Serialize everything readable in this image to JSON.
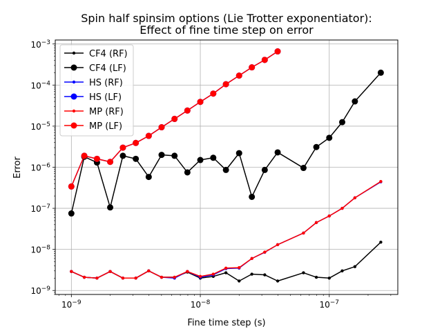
{
  "chart_data": {
    "type": "line",
    "title": [
      "Spin half spinsim options (Lie Trotter exponentiator):",
      "Effect of fine time step on error"
    ],
    "xlabel": "Fine time step (s)",
    "ylabel": "Error",
    "xscale": "log",
    "yscale": "log",
    "xlim": [
      7.5e-10,
      3.4e-07
    ],
    "ylim": [
      8e-10,
      0.00125
    ],
    "x_ticks": [
      {
        "value": 1e-09,
        "base": "10",
        "exp": "−9"
      },
      {
        "value": 1e-08,
        "base": "10",
        "exp": "−8"
      },
      {
        "value": 1e-07,
        "base": "10",
        "exp": "−7"
      }
    ],
    "y_ticks": [
      {
        "value": 1e-09,
        "base": "10",
        "exp": "−9"
      },
      {
        "value": 1e-08,
        "base": "10",
        "exp": "−8"
      },
      {
        "value": 1e-07,
        "base": "10",
        "exp": "−7"
      },
      {
        "value": 1e-06,
        "base": "10",
        "exp": "−6"
      },
      {
        "value": 1e-05,
        "base": "10",
        "exp": "−5"
      },
      {
        "value": 0.0001,
        "base": "10",
        "exp": "−4"
      },
      {
        "value": 0.001,
        "base": "10",
        "exp": "−3"
      }
    ],
    "grid": true,
    "legend_position": "top-left",
    "x": [
      1e-09,
      1.26e-09,
      1.58e-09,
      2e-09,
      2.51e-09,
      3.16e-09,
      3.98e-09,
      5.01e-09,
      6.31e-09,
      7.94e-09,
      1e-08,
      1.26e-08,
      1.58e-08,
      2e-08,
      2.51e-08,
      3.16e-08,
      3.98e-08,
      5.01e-08,
      6.31e-08,
      7.94e-08,
      1e-07,
      1.26e-07,
      1.58e-07,
      2e-07,
      2.51e-07
    ],
    "series": [
      {
        "name": "CF4 (RF)",
        "color": "#000000",
        "marker": "small",
        "values": [
          2.9e-09,
          2.1e-09,
          2e-09,
          2.9e-09,
          2e-09,
          2e-09,
          3e-09,
          2.1e-09,
          2.1e-09,
          2.8e-09,
          2e-09,
          2.2e-09,
          2.7e-09,
          1.7e-09,
          2.5e-09,
          2.4e-09,
          1.7e-09,
          null,
          2.7e-09,
          2.1e-09,
          2e-09,
          3e-09,
          3.8e-09,
          null,
          1.5e-08
        ]
      },
      {
        "name": "CF4 (LF)",
        "color": "#000000",
        "marker": "large",
        "values": [
          7.5e-08,
          1.8e-06,
          1.3e-06,
          1.05e-07,
          1.9e-06,
          1.6e-06,
          5.8e-07,
          2e-06,
          1.9e-06,
          7.5e-07,
          1.5e-06,
          1.7e-06,
          8.6e-07,
          2.2e-06,
          1.9e-07,
          8.6e-07,
          2.3e-06,
          null,
          9.6e-07,
          3.1e-06,
          5.2e-06,
          1.25e-05,
          4e-05,
          null,
          0.0002
        ]
      },
      {
        "name": "HS (RF)",
        "color": "#0000ff",
        "marker": "small",
        "values": [
          2.9e-09,
          2.1e-09,
          2e-09,
          2.9e-09,
          2e-09,
          2e-09,
          3e-09,
          2.1e-09,
          2e-09,
          2.9e-09,
          2.1e-09,
          2.4e-09,
          3.4e-09,
          3.5e-09,
          6e-09,
          8.5e-09,
          1.3e-08,
          null,
          2.5e-08,
          4.5e-08,
          6.5e-08,
          1e-07,
          1.8e-07,
          null,
          4.4e-07
        ]
      },
      {
        "name": "HS (LF)",
        "color": "#0000ff",
        "marker": "large",
        "values": [
          3.4e-07,
          1.9e-06,
          1.6e-06,
          1.35e-06,
          3e-06,
          3.9e-06,
          5.8e-06,
          9.4e-06,
          1.5e-05,
          2.4e-05,
          3.9e-05,
          6.2e-05,
          0.000105,
          0.00017,
          0.00027,
          0.00041,
          0.00066,
          null,
          null,
          null,
          null,
          null,
          null,
          null,
          null
        ]
      },
      {
        "name": "MP (RF)",
        "color": "#ff0000",
        "marker": "small",
        "values": [
          2.9e-09,
          2.1e-09,
          2e-09,
          2.9e-09,
          2e-09,
          2e-09,
          3e-09,
          2.1e-09,
          2.1e-09,
          2.9e-09,
          2.2e-09,
          2.5e-09,
          3.5e-09,
          3.6e-09,
          6e-09,
          8.6e-09,
          1.3e-08,
          null,
          2.5e-08,
          4.5e-08,
          6.5e-08,
          1e-07,
          1.8e-07,
          null,
          4.5e-07
        ]
      },
      {
        "name": "MP (LF)",
        "color": "#ff0000",
        "marker": "large",
        "values": [
          3.4e-07,
          1.9e-06,
          1.6e-06,
          1.35e-06,
          3e-06,
          3.9e-06,
          5.8e-06,
          9.4e-06,
          1.5e-05,
          2.4e-05,
          3.9e-05,
          6.2e-05,
          0.000105,
          0.00017,
          0.00027,
          0.00041,
          0.00066,
          null,
          null,
          null,
          null,
          null,
          null,
          null,
          null
        ]
      }
    ]
  }
}
